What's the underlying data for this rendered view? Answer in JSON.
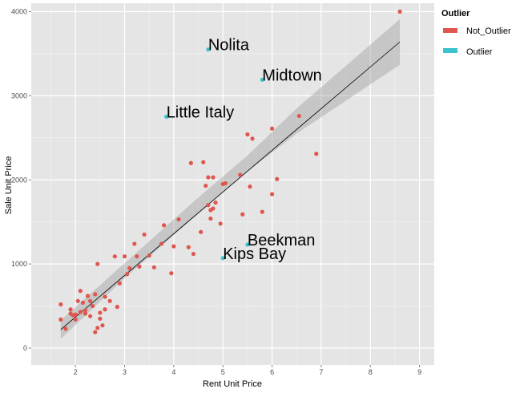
{
  "chart_data": {
    "type": "scatter",
    "xlabel": "Rent Unit Price",
    "ylabel": "Sale Unit Price",
    "xlim": [
      1.1,
      9.3
    ],
    "ylim": [
      -200,
      4100
    ],
    "x_ticks": [
      2,
      3,
      4,
      5,
      6,
      7,
      8,
      9
    ],
    "y_ticks": [
      0,
      1000,
      2000,
      3000,
      4000
    ],
    "grid": true,
    "legend": {
      "title": "Outlier",
      "position": "right",
      "entries": [
        {
          "name": "Not_Outlier",
          "color": "#E0564E"
        },
        {
          "name": "Outlier",
          "color": "#3BC4CC"
        }
      ]
    },
    "trend_line": {
      "x": [
        1.7,
        8.6
      ],
      "y": [
        220,
        3640
      ]
    },
    "confidence_band": {
      "x": [
        1.7,
        3.0,
        4.5,
        5.5,
        6.5,
        8.6
      ],
      "lower": [
        110,
        830,
        1600,
        2100,
        2550,
        3370
      ],
      "upper": [
        330,
        1010,
        1790,
        2290,
        2850,
        3910
      ]
    },
    "series": [
      {
        "name": "Not_Outlier",
        "points": [
          [
            1.7,
            520
          ],
          [
            1.7,
            340
          ],
          [
            1.8,
            230
          ],
          [
            1.9,
            460
          ],
          [
            1.9,
            410
          ],
          [
            1.95,
            390
          ],
          [
            2.0,
            340
          ],
          [
            2.0,
            400
          ],
          [
            2.05,
            560
          ],
          [
            2.1,
            430
          ],
          [
            2.1,
            680
          ],
          [
            2.15,
            540
          ],
          [
            2.2,
            450
          ],
          [
            2.2,
            410
          ],
          [
            2.25,
            620
          ],
          [
            2.3,
            560
          ],
          [
            2.3,
            380
          ],
          [
            2.35,
            500
          ],
          [
            2.4,
            640
          ],
          [
            2.4,
            190
          ],
          [
            2.45,
            1000
          ],
          [
            2.45,
            240
          ],
          [
            2.5,
            420
          ],
          [
            2.5,
            350
          ],
          [
            2.55,
            270
          ],
          [
            2.6,
            460
          ],
          [
            2.6,
            610
          ],
          [
            2.7,
            560
          ],
          [
            2.8,
            1090
          ],
          [
            2.85,
            490
          ],
          [
            2.9,
            770
          ],
          [
            3.0,
            1090
          ],
          [
            3.05,
            880
          ],
          [
            3.1,
            950
          ],
          [
            3.2,
            1240
          ],
          [
            3.25,
            1090
          ],
          [
            3.3,
            970
          ],
          [
            3.4,
            1350
          ],
          [
            3.5,
            1100
          ],
          [
            3.6,
            960
          ],
          [
            3.75,
            1240
          ],
          [
            3.8,
            1460
          ],
          [
            3.95,
            890
          ],
          [
            4.0,
            1210
          ],
          [
            4.1,
            1530
          ],
          [
            4.3,
            1200
          ],
          [
            4.35,
            2200
          ],
          [
            4.4,
            1120
          ],
          [
            4.55,
            1380
          ],
          [
            4.6,
            2210
          ],
          [
            4.65,
            1930
          ],
          [
            4.7,
            2030
          ],
          [
            4.7,
            1700
          ],
          [
            4.75,
            1540
          ],
          [
            4.75,
            1640
          ],
          [
            4.8,
            2030
          ],
          [
            4.8,
            1660
          ],
          [
            4.85,
            1730
          ],
          [
            4.95,
            1480
          ],
          [
            5.0,
            1950
          ],
          [
            5.05,
            1960
          ],
          [
            5.35,
            2060
          ],
          [
            5.4,
            1590
          ],
          [
            5.5,
            2540
          ],
          [
            5.55,
            1920
          ],
          [
            5.6,
            2490
          ],
          [
            5.8,
            1620
          ],
          [
            6.0,
            2610
          ],
          [
            6.0,
            1830
          ],
          [
            6.1,
            2010
          ],
          [
            6.55,
            2760
          ],
          [
            6.9,
            2310
          ],
          [
            8.6,
            4000
          ]
        ]
      },
      {
        "name": "Outlier",
        "points": [
          [
            4.7,
            3550
          ],
          [
            5.8,
            3190
          ],
          [
            3.85,
            2750
          ],
          [
            5.5,
            1230
          ],
          [
            5.0,
            1070
          ]
        ]
      }
    ],
    "annotations": [
      {
        "text": "Nolita",
        "x": 4.7,
        "y": 3550
      },
      {
        "text": "Midtown",
        "x": 5.8,
        "y": 3190
      },
      {
        "text": "Little Italy",
        "x": 3.85,
        "y": 2750
      },
      {
        "text": "Beekman",
        "x": 5.5,
        "y": 1230
      },
      {
        "text": "Kips Bay",
        "x": 5.0,
        "y": 1070
      }
    ]
  }
}
